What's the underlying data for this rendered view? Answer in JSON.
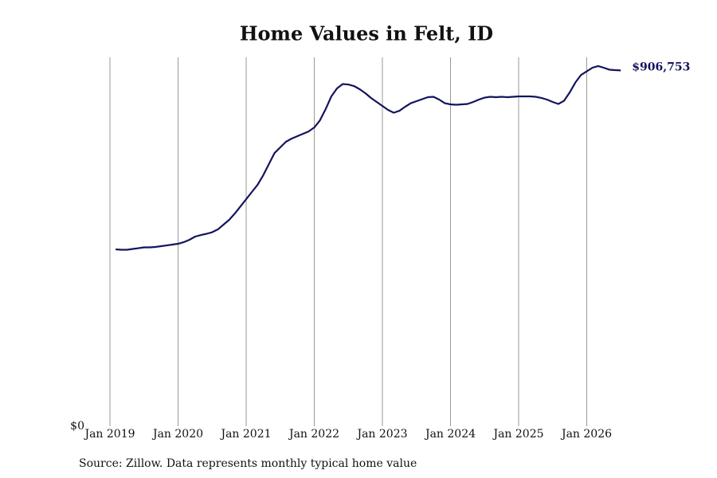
{
  "chart_data": {
    "type": "line",
    "title": "Home Values in Felt, ID",
    "source": "Source: Zillow. Data represents monthly typical home value",
    "x": [
      "2019-02",
      "2019-03",
      "2019-04",
      "2019-05",
      "2019-06",
      "2019-07",
      "2019-08",
      "2019-09",
      "2019-10",
      "2019-11",
      "2019-12",
      "2020-01",
      "2020-02",
      "2020-03",
      "2020-04",
      "2020-05",
      "2020-06",
      "2020-07",
      "2020-08",
      "2020-09",
      "2020-10",
      "2020-11",
      "2020-12",
      "2021-01",
      "2021-02",
      "2021-03",
      "2021-04",
      "2021-05",
      "2021-06",
      "2021-07",
      "2021-08",
      "2021-09",
      "2021-10",
      "2021-11",
      "2021-12",
      "2022-01",
      "2022-02",
      "2022-03",
      "2022-04",
      "2022-05",
      "2022-06",
      "2022-07",
      "2022-08",
      "2022-09",
      "2022-10",
      "2022-11",
      "2022-12",
      "2023-01",
      "2023-02",
      "2023-03",
      "2023-04",
      "2023-05",
      "2023-06",
      "2023-07",
      "2023-08",
      "2023-09",
      "2023-10",
      "2023-11",
      "2023-12",
      "2024-01",
      "2024-02",
      "2024-03",
      "2024-04",
      "2024-05",
      "2024-06",
      "2024-07",
      "2024-08",
      "2024-09",
      "2024-10",
      "2024-11",
      "2024-12",
      "2025-01",
      "2025-02",
      "2025-03",
      "2025-04",
      "2025-05",
      "2025-06",
      "2025-07",
      "2025-08",
      "2025-09",
      "2025-10",
      "2025-11",
      "2025-12",
      "2026-01",
      "2026-02",
      "2026-03",
      "2026-04",
      "2026-05",
      "2026-06",
      "2026-07"
    ],
    "series": [
      {
        "name": "Home Values",
        "color": "#14145e",
        "values": [
          450700,
          449700,
          449700,
          451700,
          453700,
          455800,
          455800,
          456800,
          458800,
          460800,
          462900,
          464900,
          469000,
          475100,
          483200,
          487200,
          490300,
          494300,
          501400,
          513600,
          525800,
          542000,
          560300,
          578600,
          596900,
          615100,
          639500,
          667900,
          696300,
          710600,
          724800,
          732900,
          739000,
          745100,
          751200,
          761300,
          779600,
          808000,
          840500,
          860800,
          872000,
          870900,
          866900,
          858800,
          848600,
          836500,
          826300,
          816100,
          806000,
          798900,
          803900,
          814100,
          823200,
          828300,
          833400,
          838500,
          839500,
          832400,
          823200,
          820200,
          819200,
          820200,
          821200,
          826300,
          832400,
          837400,
          839500,
          838500,
          839500,
          838500,
          839500,
          840500,
          840500,
          840500,
          839500,
          836500,
          832400,
          826300,
          821200,
          829300,
          850600,
          876000,
          895300,
          904400,
          913600,
          917700,
          913600,
          908600,
          907500,
          906753
        ],
        "value_labels": [
          null,
          null,
          null,
          null,
          null,
          null,
          null,
          null,
          null,
          null,
          null,
          null,
          null,
          null,
          null,
          null,
          null,
          null,
          null,
          null,
          null,
          null,
          null,
          null,
          null,
          null,
          null,
          null,
          null,
          null,
          null,
          null,
          null,
          null,
          null,
          null,
          null,
          null,
          null,
          null,
          null,
          null,
          null,
          null,
          null,
          null,
          null,
          null,
          null,
          null,
          null,
          null,
          null,
          null,
          null,
          null,
          null,
          null,
          null,
          null,
          null,
          null,
          null,
          null,
          null,
          null,
          null,
          null,
          null,
          null,
          null,
          null,
          null,
          null,
          null,
          null,
          null,
          null,
          null,
          null,
          null,
          null,
          null,
          null,
          null,
          null,
          null,
          null,
          null,
          "$906,753"
        ]
      }
    ],
    "xlim": [
      "2019-01",
      "2027-01"
    ],
    "xticks": [
      {
        "value": "2019-01",
        "label": "Jan 2019"
      },
      {
        "value": "2020-01",
        "label": "Jan 2020"
      },
      {
        "value": "2021-01",
        "label": "Jan 2021"
      },
      {
        "value": "2022-01",
        "label": "Jan 2022"
      },
      {
        "value": "2023-01",
        "label": "Jan 2023"
      },
      {
        "value": "2024-01",
        "label": "Jan 2024"
      },
      {
        "value": "2025-01",
        "label": "Jan 2025"
      },
      {
        "value": "2026-01",
        "label": "Jan 2026"
      }
    ],
    "ylim": [
      0,
      940000
    ],
    "yticks": [
      {
        "value": 0,
        "label": "$0"
      }
    ],
    "grid": true
  }
}
